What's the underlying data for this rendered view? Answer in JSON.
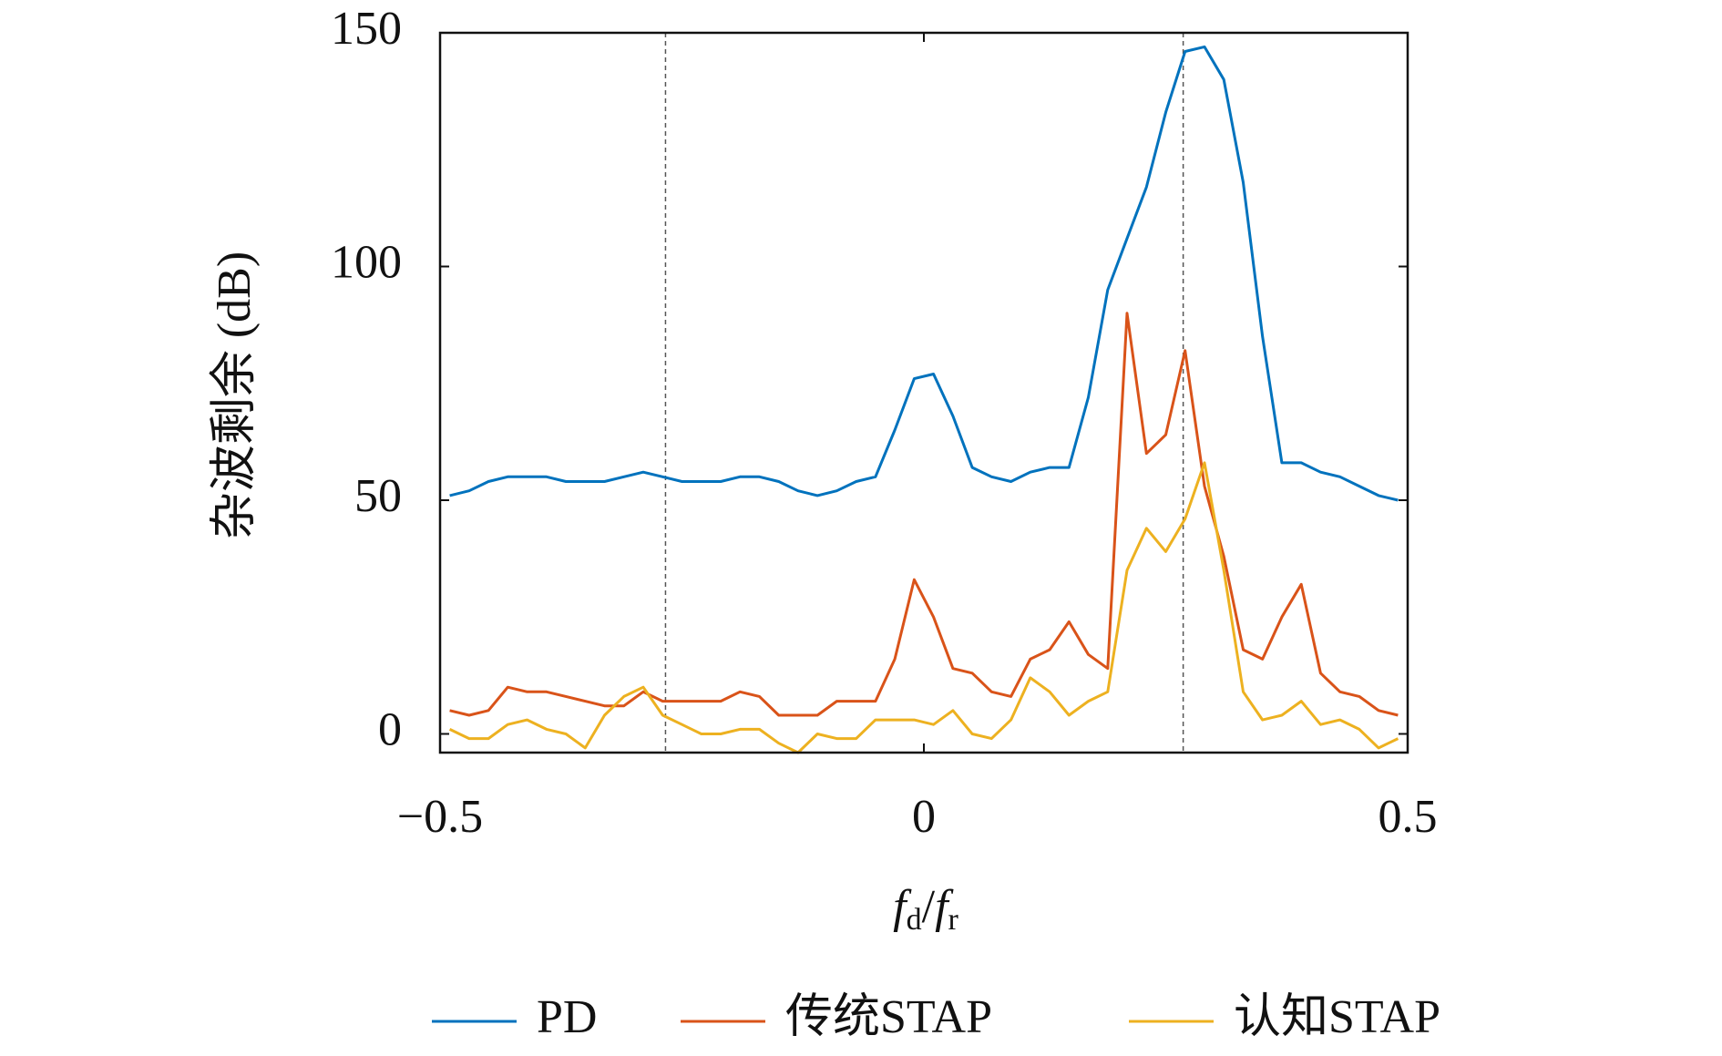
{
  "chart_data": {
    "type": "line",
    "y_label": "杂波剩余 (dB)",
    "x_label": [
      "f",
      "d",
      "/",
      "f",
      "r"
    ],
    "xlim": [
      -0.5,
      0.5
    ],
    "ylim": [
      -4,
      150
    ],
    "xticks": [
      {
        "value": -0.5,
        "label": "−0.5"
      },
      0,
      0.5
    ],
    "yticks": [
      0,
      50,
      100,
      150
    ],
    "reference_lines": [
      -0.267,
      0.268
    ],
    "x": [
      -0.49,
      -0.47,
      -0.45,
      -0.43,
      -0.41,
      -0.39,
      -0.37,
      -0.35,
      -0.33,
      -0.31,
      -0.29,
      -0.27,
      -0.25,
      -0.23,
      -0.21,
      -0.19,
      -0.17,
      -0.15,
      -0.13,
      -0.11,
      -0.09,
      -0.07,
      -0.05,
      -0.03,
      -0.01,
      0.01,
      0.03,
      0.05,
      0.07,
      0.09,
      0.11,
      0.13,
      0.15,
      0.17,
      0.19,
      0.21,
      0.23,
      0.25,
      0.27,
      0.29,
      0.31,
      0.33,
      0.35,
      0.37,
      0.39,
      0.41,
      0.43,
      0.45,
      0.47,
      0.49
    ],
    "series": [
      {
        "name": "PD",
        "color": "#0072bd",
        "values": [
          51,
          52,
          54,
          55,
          55,
          55,
          54,
          54,
          54,
          55,
          56,
          55,
          54,
          54,
          54,
          55,
          55,
          54,
          52,
          51,
          52,
          54,
          55,
          65,
          76,
          77,
          68,
          57,
          55,
          54,
          56,
          57,
          57,
          72,
          95,
          106,
          117,
          133,
          146,
          147,
          140,
          118,
          85,
          58,
          58,
          56,
          55,
          53,
          51,
          50
        ]
      },
      {
        "name": "传统STAP",
        "color": "#d95319",
        "values": [
          5,
          4,
          5,
          10,
          9,
          9,
          8,
          7,
          6,
          6,
          9,
          7,
          7,
          7,
          7,
          9,
          8,
          4,
          4,
          4,
          7,
          7,
          7,
          16,
          33,
          25,
          14,
          13,
          9,
          8,
          16,
          18,
          24,
          17,
          14,
          90,
          60,
          64,
          82,
          53,
          38,
          18,
          16,
          25,
          32,
          13,
          9,
          8,
          5,
          4
        ]
      },
      {
        "name": "认知STAP",
        "color": "#edb120",
        "values": [
          1,
          -1,
          -1,
          2,
          3,
          1,
          0,
          -3,
          4,
          8,
          10,
          4,
          2,
          0,
          0,
          1,
          1,
          -2,
          -4,
          0,
          -1,
          -1,
          3,
          3,
          3,
          2,
          5,
          0,
          -1,
          3,
          12,
          9,
          4,
          7,
          9,
          35,
          44,
          39,
          46,
          58,
          35,
          9,
          3,
          4,
          7,
          2,
          3,
          1,
          -3,
          -1
        ]
      }
    ]
  }
}
